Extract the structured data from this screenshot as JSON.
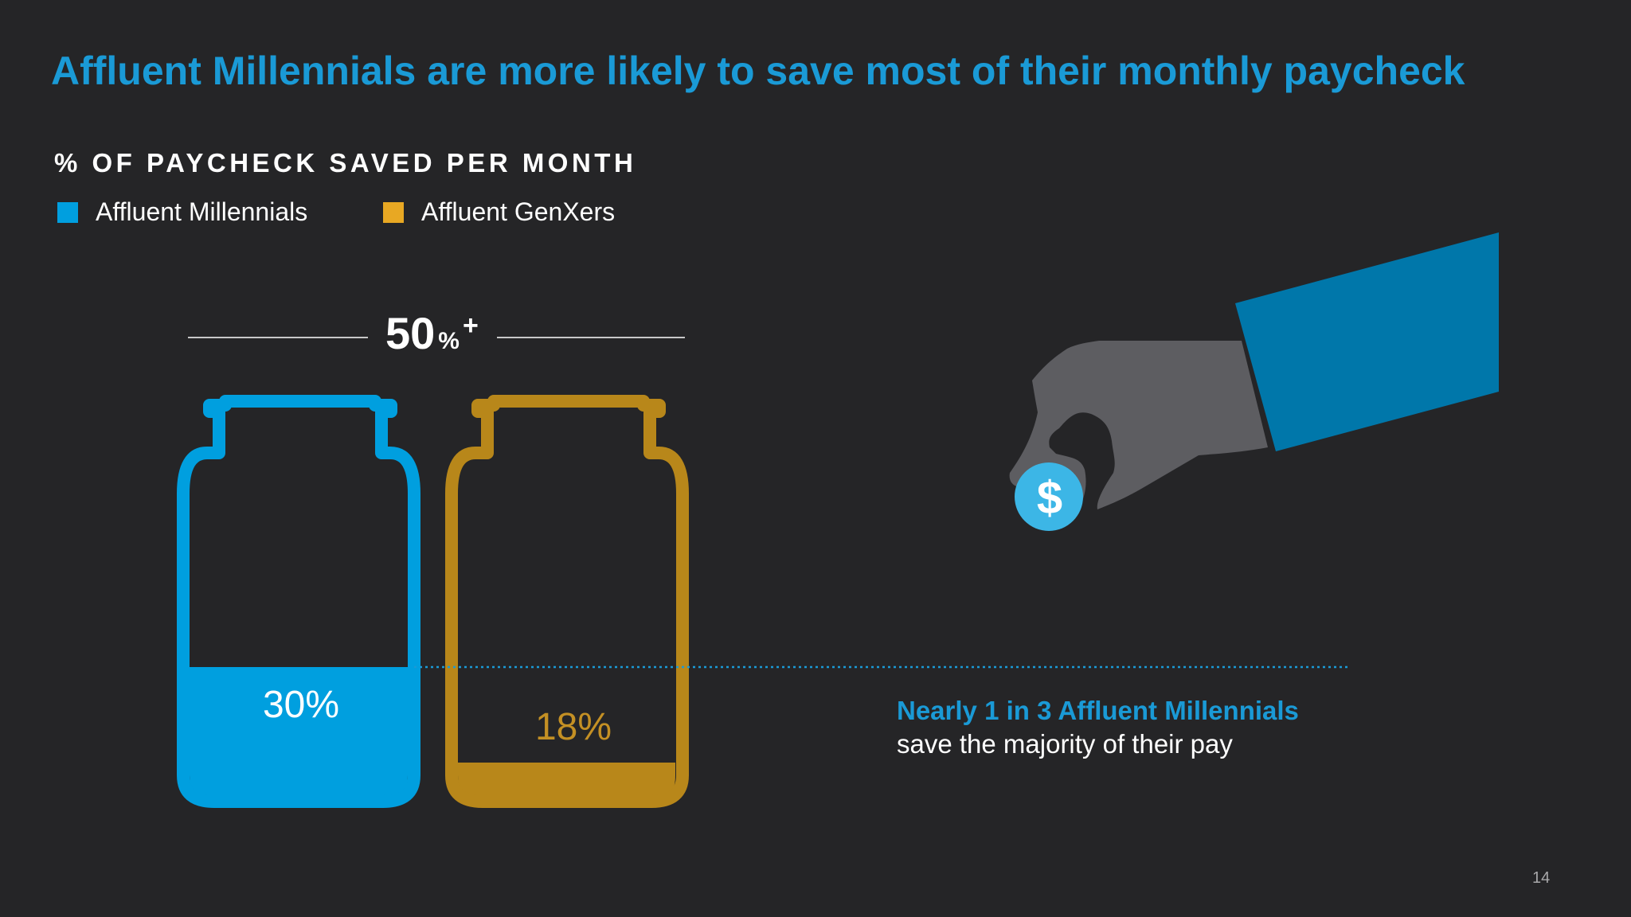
{
  "title": "Affluent Millennials are more likely to save most of their monthly paycheck",
  "page_number": "14",
  "callout": {
    "headline": "Nearly 1 in 3 Affluent Millennials",
    "body": "save the majority of their pay"
  },
  "icons": {
    "hand": "hand-holding-coin-icon",
    "coin": "dollar-coin-icon",
    "coin_symbol": "$"
  },
  "colors": {
    "background": "#252527",
    "title": "#1a9ad6",
    "millennials": "#009fdf",
    "genxers": "#b8871a",
    "legend_genxers": "#e8a823",
    "hand": "#5d5d61",
    "sleeve": "#0077aa",
    "coin": "#3cb6e6"
  },
  "chart_data": {
    "type": "bar",
    "title": "% OF PAYCHECK SAVED PER MONTH",
    "category_label": "50%+",
    "category_value": "50",
    "category_unit": "%",
    "category_suffix": "+",
    "ylim": [
      0,
      100
    ],
    "series": [
      {
        "name": "Affluent Millennials",
        "value": 30,
        "label": "30%"
      },
      {
        "name": "Affluent GenXers",
        "value": 18,
        "label": "18%"
      }
    ],
    "legend": "top-left",
    "grid": false
  }
}
